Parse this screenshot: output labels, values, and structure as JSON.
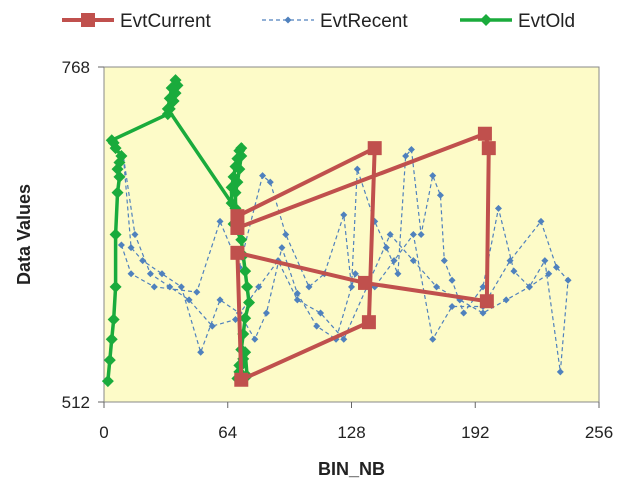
{
  "chart_data": {
    "type": "scatter",
    "xlabel": "BIN_NB",
    "ylabel": "Data Values",
    "xlim": [
      0,
      256
    ],
    "ylim": [
      512,
      768
    ],
    "xticks": [
      0,
      64,
      128,
      192,
      256
    ],
    "yticks": [
      512,
      768
    ],
    "grid": false,
    "legend": "top",
    "background": "#fdfbc8",
    "series": [
      {
        "name": "EvtCurrent",
        "color": "#c0504d",
        "style": "solid-square",
        "x": [
          69,
          140,
          137,
          71,
          69,
          135,
          198,
          199,
          197,
          69
        ],
        "y": [
          654,
          706,
          573,
          529,
          626,
          603,
          589,
          706,
          717,
          645
        ]
      },
      {
        "name": "EvtRecent",
        "color": "#4f81bd",
        "style": "dashed-diamond",
        "x": [
          9,
          14,
          26,
          48,
          60,
          70,
          82,
          86,
          94,
          106,
          114,
          124,
          128,
          131,
          140,
          146,
          152,
          156,
          159,
          164,
          170,
          174,
          176,
          180,
          186,
          196,
          204,
          212,
          220,
          228,
          236,
          240,
          234,
          226,
          210,
          196,
          180,
          170,
          160,
          150,
          140,
          130,
          120,
          110,
          100,
          92,
          84,
          78,
          70,
          60,
          50,
          40,
          30,
          20,
          14,
          10,
          16,
          24,
          34,
          44,
          56,
          68,
          80,
          90,
          100,
          112,
          124,
          136,
          148,
          160,
          172,
          184,
          196,
          208,
          220,
          230
        ],
        "y": [
          632,
          610,
          600,
          596,
          650,
          615,
          685,
          680,
          640,
          600,
          610,
          655,
          600,
          690,
          650,
          630,
          610,
          700,
          705,
          640,
          685,
          670,
          620,
          605,
          580,
          600,
          660,
          612,
          600,
          620,
          535,
          605,
          615,
          650,
          620,
          585,
          585,
          560,
          640,
          620,
          600,
          610,
          560,
          570,
          595,
          630,
          580,
          560,
          580,
          590,
          550,
          600,
          610,
          620,
          630,
          700,
          640,
          610,
          600,
          590,
          570,
          575,
          600,
          620,
          590,
          580,
          560,
          600,
          640,
          620,
          600,
          590,
          580,
          590,
          600,
          610
        ]
      },
      {
        "name": "EvtOld",
        "color": "#1aab3c",
        "style": "solid-diamond",
        "x": [
          2,
          3,
          4,
          5,
          6,
          6,
          7,
          8,
          7,
          8,
          9,
          6,
          5,
          4,
          33,
          34,
          36,
          37,
          38,
          37,
          35,
          34,
          33,
          66,
          66,
          67,
          68,
          69,
          70,
          71,
          71,
          70,
          69,
          68,
          68,
          67,
          71,
          72,
          73,
          74,
          75,
          73,
          72,
          71,
          70,
          69,
          70,
          71,
          72,
          73,
          74
        ],
        "y": [
          528,
          544,
          560,
          575,
          600,
          640,
          672,
          684,
          690,
          695,
          700,
          706,
          710,
          712,
          732,
          736,
          742,
          748,
          754,
          758,
          752,
          744,
          736,
          664,
          676,
          684,
          692,
          698,
          704,
          706,
          700,
          690,
          680,
          672,
          660,
          648,
          636,
          624,
          612,
          600,
          588,
          576,
          564,
          552,
          540,
          530,
          535,
          540,
          545,
          550,
          532
        ]
      }
    ]
  }
}
